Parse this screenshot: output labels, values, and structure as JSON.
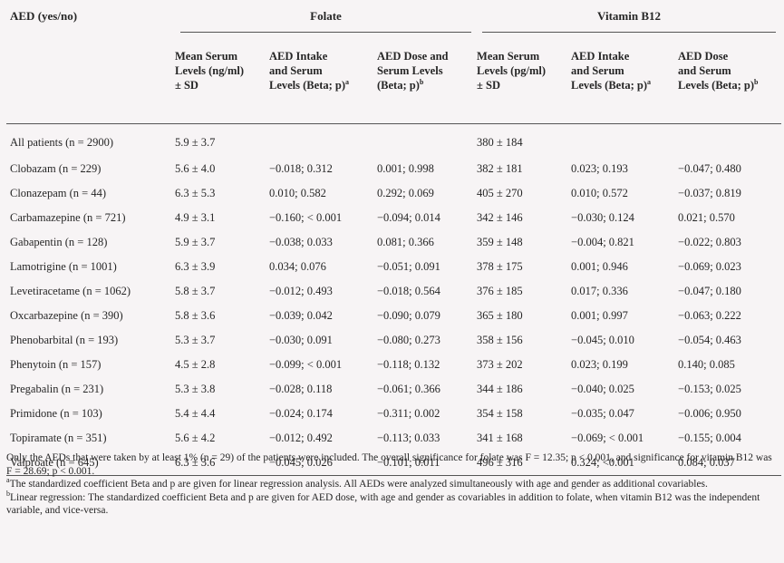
{
  "header": {
    "aed_col": "AED (yes/no)",
    "folate_group": "Folate",
    "b12_group": "Vitamin B12",
    "folate_cols": [
      {
        "lines": [
          "Mean Serum",
          "Levels (ng/ml)",
          "± SD"
        ],
        "sup": "",
        "last": ""
      },
      {
        "lines": [
          "AED Intake",
          "and Serum"
        ],
        "last": "Levels (Beta; p)",
        "sup": "a"
      },
      {
        "lines": [
          "AED Dose and",
          "Serum Levels"
        ],
        "last": "(Beta; p)",
        "sup": "b"
      }
    ],
    "b12_cols": [
      {
        "lines": [
          "Mean Serum",
          "Levels (pg/ml)",
          "± SD"
        ],
        "sup": "",
        "last": ""
      },
      {
        "lines": [
          "AED Intake",
          "and Serum"
        ],
        "last": "Levels (Beta; p)",
        "sup": "a"
      },
      {
        "lines": [
          "AED Dose",
          "and Serum"
        ],
        "last": "Levels (Beta; p)",
        "sup": "b"
      }
    ]
  },
  "rows": [
    [
      "All patients (n = 2900)",
      "5.9 ± 3.7",
      "",
      "",
      "380 ± 184",
      "",
      ""
    ],
    [
      "Clobazam (n = 229)",
      "5.6 ± 4.0",
      "−0.018; 0.312",
      "0.001; 0.998",
      "382 ± 181",
      "0.023; 0.193",
      "−0.047; 0.480"
    ],
    [
      "Clonazepam (n = 44)",
      "6.3 ± 5.3",
      "0.010; 0.582",
      "0.292; 0.069",
      "405 ± 270",
      "0.010; 0.572",
      "−0.037; 0.819"
    ],
    [
      "Carbamazepine (n = 721)",
      "4.9 ± 3.1",
      "−0.160; < 0.001",
      "−0.094; 0.014",
      "342 ± 146",
      "−0.030; 0.124",
      "0.021; 0.570"
    ],
    [
      "Gabapentin (n = 128)",
      "5.9 ± 3.7",
      "−0.038; 0.033",
      "0.081; 0.366",
      "359 ± 148",
      "−0.004; 0.821",
      "−0.022; 0.803"
    ],
    [
      "Lamotrigine (n = 1001)",
      "6.3 ± 3.9",
      "0.034; 0.076",
      "−0.051; 0.091",
      "378 ± 175",
      "0.001; 0.946",
      "−0.069; 0.023"
    ],
    [
      "Levetiracetame (n = 1062)",
      "5.8 ± 3.7",
      "−0.012; 0.493",
      "−0.018; 0.564",
      "376 ± 185",
      "0.017; 0.336",
      "−0.047; 0.180"
    ],
    [
      "Oxcarbazepine (n = 390)",
      "5.8 ± 3.6",
      "−0.039; 0.042",
      "−0.090; 0.079",
      "365 ± 180",
      "0.001; 0.997",
      "−0.063; 0.222"
    ],
    [
      "Phenobarbital (n = 193)",
      "5.3 ± 3.7",
      "−0.030; 0.091",
      "−0.080; 0.273",
      "358 ± 156",
      "−0.045; 0.010",
      "−0.054; 0.463"
    ],
    [
      "Phenytoin (n = 157)",
      "4.5 ± 2.8",
      "−0.099; < 0.001",
      "−0.118; 0.132",
      "373 ± 202",
      "0.023; 0.199",
      "0.140; 0.085"
    ],
    [
      "Pregabalin (n = 231)",
      "5.3 ± 3.8",
      "−0.028; 0.118",
      "−0.061; 0.366",
      "344 ± 186",
      "−0.040; 0.025",
      "−0.153; 0.025"
    ],
    [
      "Primidone (n = 103)",
      "5.4 ± 4.4",
      "−0.024; 0.174",
      "−0.311; 0.002",
      "354 ± 158",
      "−0.035; 0.047",
      "−0.006; 0.950"
    ],
    [
      "Topiramate (n = 351)",
      "5.6 ± 4.2",
      "−0.012; 0.492",
      "−0.113; 0.033",
      "341 ± 168",
      "−0.069; < 0.001",
      "−0.155; 0.004"
    ],
    [
      "Valproate (n = 645)",
      "6.3 ± 3.6",
      "−0.045; 0.026",
      "−0.101; 0.011",
      "496 ± 316",
      "0.324; <0.001",
      "0.084; 0.037"
    ]
  ],
  "notes": {
    "main": "Only the AEDs that were taken by at least 1% (n = 29) of the patients were included. The overall significance for folate was F = 12.35; p < 0.001, and significance for vitamin B12 was F = 28.69; p < 0.001.",
    "a_mark": "a",
    "a_text": "The standardized coefficient Beta and p are given for linear regression analysis. All AEDs were analyzed simultaneously with age and gender as additional covariables.",
    "b_mark": "b",
    "b_text": "Linear regression: The standardized coefficient Beta and p are given for AED dose, with age and gender as covariables in addition to folate, when vitamin B12 was the independent variable, and vice-versa."
  }
}
